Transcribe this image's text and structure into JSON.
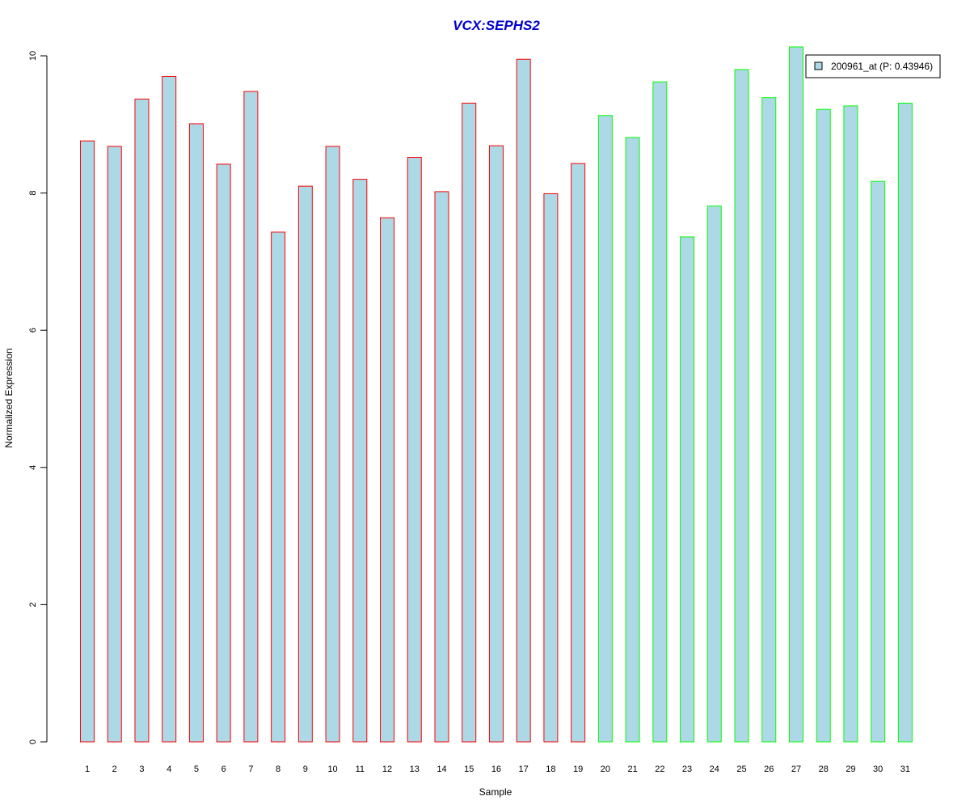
{
  "chart_data": {
    "type": "bar",
    "title": "VCX:SEPHS2",
    "xlabel": "Sample",
    "ylabel": "Normalized Expression",
    "ylim": [
      0,
      10
    ],
    "y_ticks": [
      "0",
      "2",
      "4",
      "6",
      "8",
      "10"
    ],
    "categories": [
      "1",
      "2",
      "3",
      "4",
      "5",
      "6",
      "7",
      "8",
      "9",
      "10",
      "11",
      "12",
      "13",
      "14",
      "15",
      "16",
      "17",
      "18",
      "19",
      "20",
      "21",
      "22",
      "23",
      "24",
      "25",
      "26",
      "27",
      "28",
      "29",
      "30",
      "31"
    ],
    "values": [
      8.76,
      8.68,
      9.37,
      9.7,
      9.01,
      8.42,
      9.48,
      7.43,
      8.1,
      8.68,
      8.2,
      7.64,
      8.52,
      8.02,
      9.31,
      8.69,
      9.95,
      7.99,
      8.43,
      9.13,
      8.81,
      9.62,
      7.36,
      7.81,
      9.8,
      9.39,
      10.13,
      9.22,
      9.27,
      8.17,
      9.31
    ],
    "groups": [
      "red",
      "red",
      "red",
      "red",
      "red",
      "red",
      "red",
      "red",
      "red",
      "red",
      "red",
      "red",
      "red",
      "red",
      "red",
      "red",
      "red",
      "red",
      "red",
      "green",
      "green",
      "green",
      "green",
      "green",
      "green",
      "green",
      "green",
      "green",
      "green",
      "green",
      "green"
    ],
    "legend": {
      "position": "top-right",
      "entries": [
        {
          "label": "200961_at (P: 0.43946)",
          "color": "#add8e6"
        }
      ]
    },
    "colors": {
      "bar_fill": "#add8e6",
      "border_red": "#ff0000",
      "border_green": "#00ff00",
      "title": "#0000cd"
    },
    "grid": false
  }
}
